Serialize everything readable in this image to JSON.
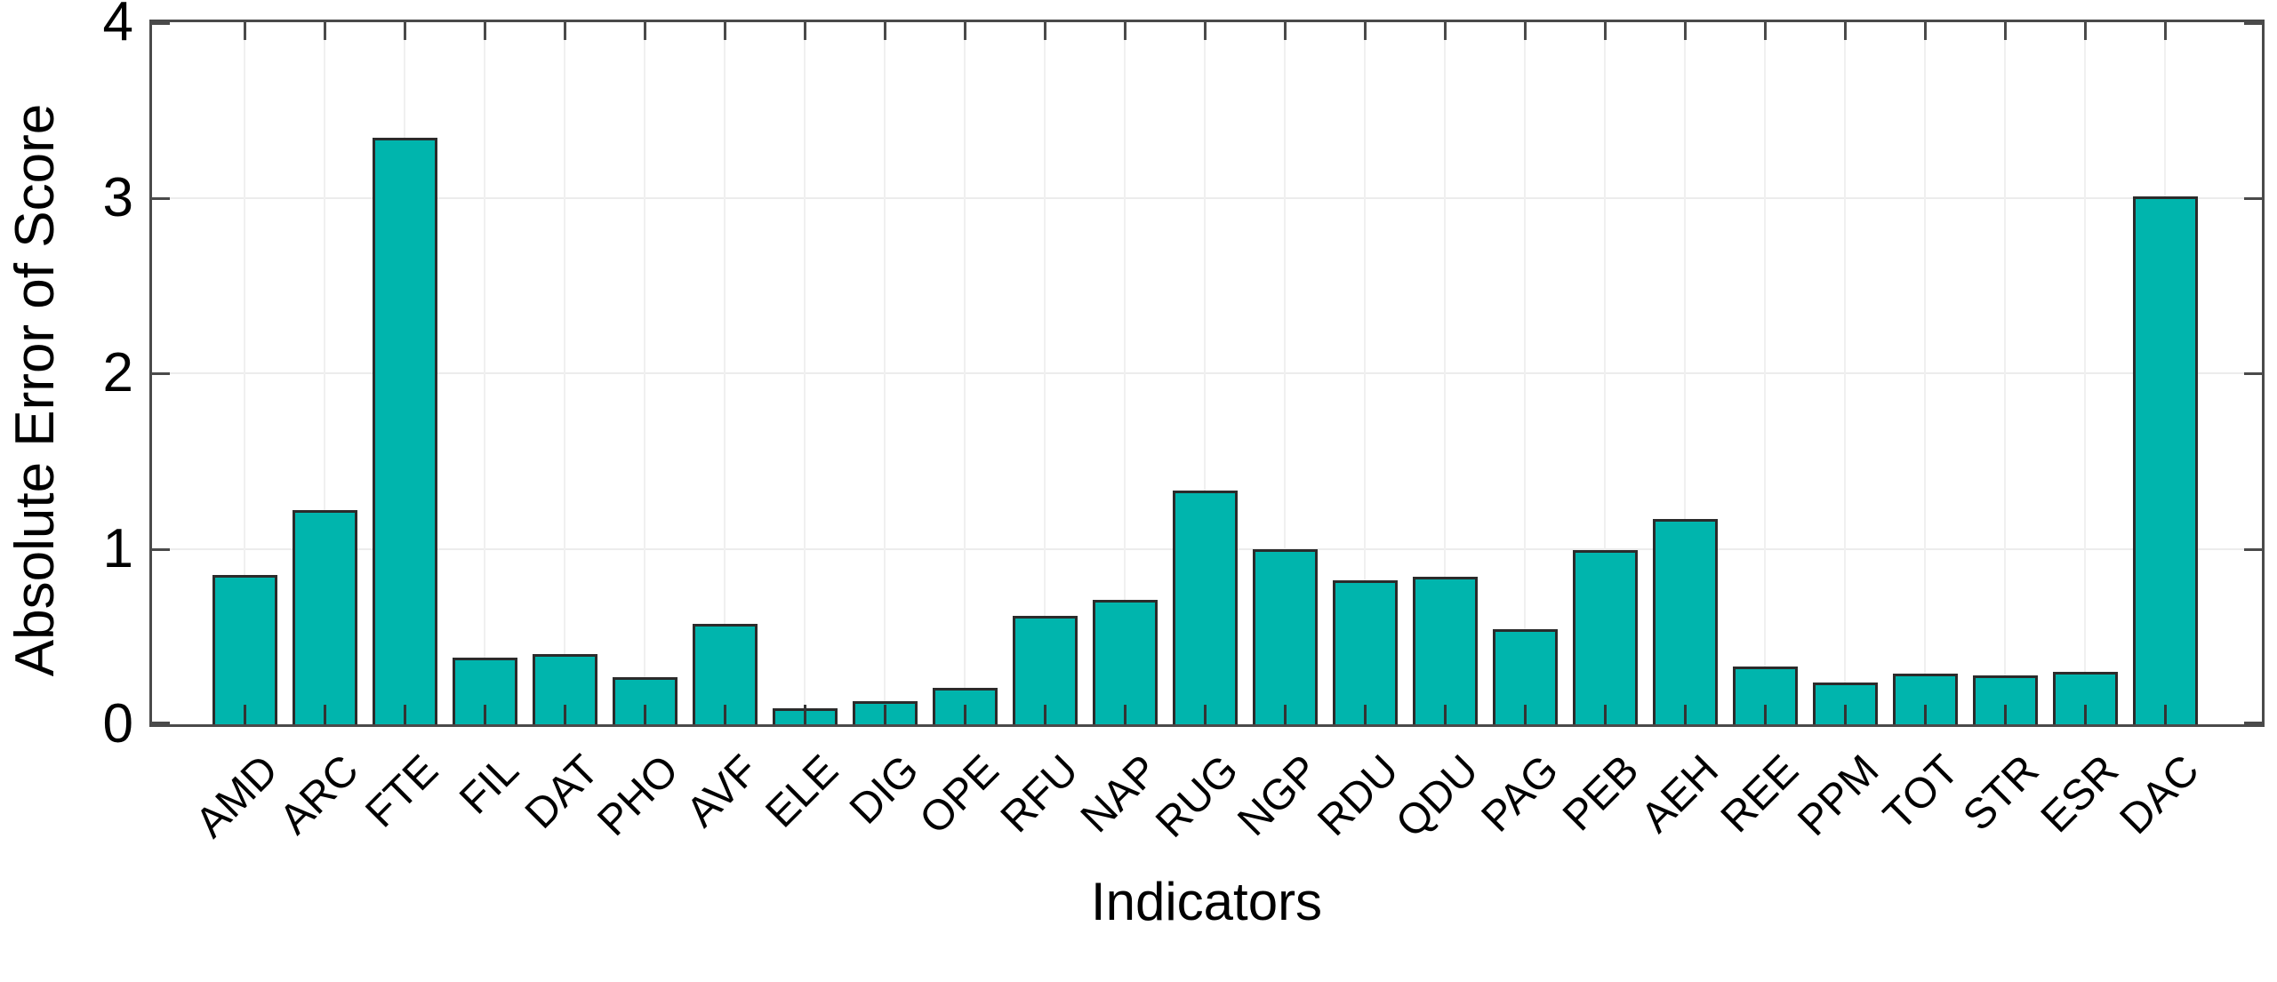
{
  "chart_data": {
    "type": "bar",
    "title": "",
    "xlabel": "Indicators",
    "ylabel": "Absolute Error of Score",
    "categories": [
      "AMD",
      "ARC",
      "FTE",
      "FIL",
      "DAT",
      "PHO",
      "AVF",
      "ELE",
      "DIG",
      "OPE",
      "RFU",
      "NAP",
      "RUG",
      "NGP",
      "RDU",
      "QDU",
      "PAG",
      "PEB",
      "AEH",
      "REE",
      "PPM",
      "TOT",
      "STR",
      "ESR",
      "DAC"
    ],
    "values": [
      0.85,
      1.22,
      3.34,
      0.38,
      0.4,
      0.27,
      0.57,
      0.09,
      0.13,
      0.21,
      0.62,
      0.71,
      1.33,
      1.0,
      0.82,
      0.84,
      0.54,
      0.99,
      1.17,
      0.33,
      0.24,
      0.29,
      0.28,
      0.3,
      3.01
    ],
    "ylim": [
      0,
      4
    ],
    "yticks": [
      "0",
      "1",
      "2",
      "3",
      "4"
    ],
    "grid": true,
    "legend": "none",
    "bar_color": "#00b5ad",
    "bar_edge_color": "#2b2b2b",
    "axis_color": "#4a4a4a",
    "grid_color": "#ececec",
    "xtick_rotation_deg": 45
  }
}
